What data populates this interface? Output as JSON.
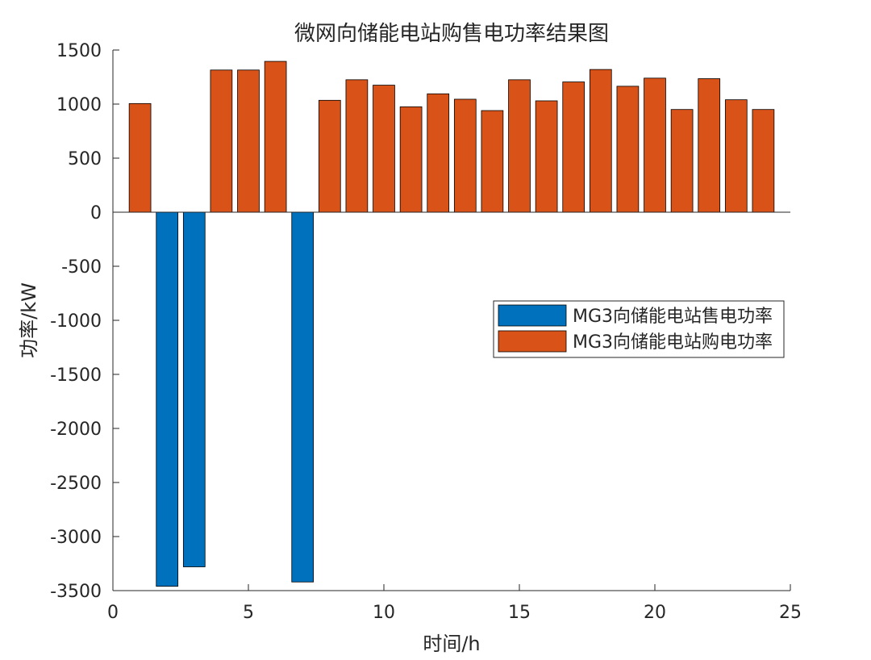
{
  "chart_data": {
    "type": "bar",
    "title": "微网向储能电站购售电功率结果图",
    "xlabel": "时间/h",
    "ylabel": "功率/kW",
    "xlim": [
      0,
      25
    ],
    "ylim": [
      -3500,
      1500
    ],
    "xticks": [
      0,
      5,
      10,
      15,
      20,
      25
    ],
    "yticks": [
      -3500,
      -3000,
      -2500,
      -2000,
      -1500,
      -1000,
      -500,
      0,
      500,
      1000,
      1500
    ],
    "x": [
      1,
      2,
      3,
      4,
      5,
      6,
      7,
      8,
      9,
      10,
      11,
      12,
      13,
      14,
      15,
      16,
      17,
      18,
      19,
      20,
      21,
      22,
      23,
      24
    ],
    "series": [
      {
        "name": "MG3向储能电站售电功率",
        "color": "#0072BD",
        "values": [
          0,
          -3460,
          -3280,
          0,
          0,
          0,
          -3420,
          0,
          0,
          0,
          0,
          0,
          0,
          0,
          0,
          0,
          0,
          0,
          0,
          0,
          0,
          0,
          0,
          0
        ]
      },
      {
        "name": "MG3向储能电站购电功率",
        "color": "#D95319",
        "values": [
          1005,
          0,
          0,
          1315,
          1315,
          1395,
          0,
          1035,
          1225,
          1175,
          975,
          1095,
          1045,
          940,
          1225,
          1030,
          1205,
          1320,
          1165,
          1240,
          950,
          1235,
          1040,
          950
        ]
      }
    ],
    "legend_position": "middle-right",
    "grid": false
  }
}
